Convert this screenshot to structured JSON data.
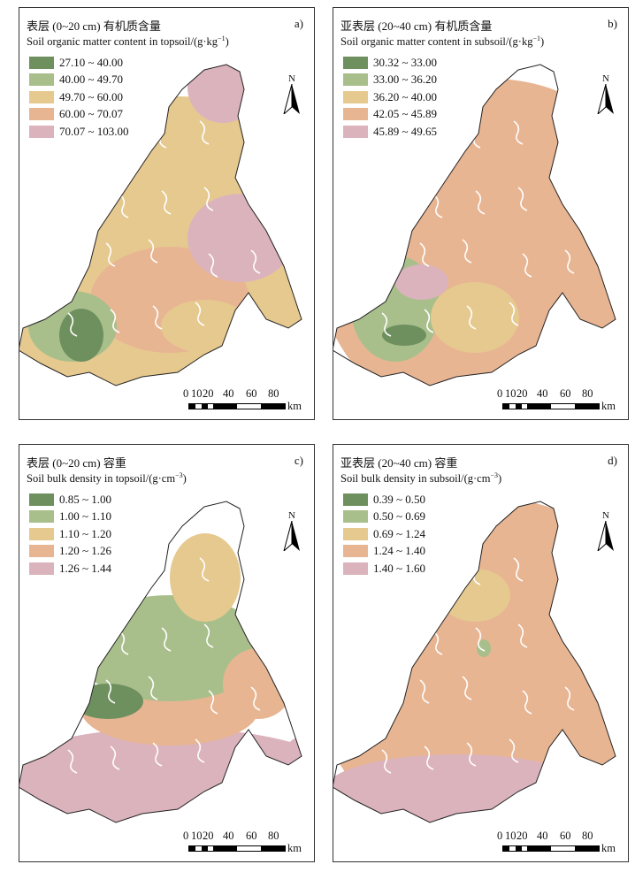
{
  "panels": [
    {
      "id": "a",
      "label": "a)",
      "title_cn": "表层 (0~20 cm) 有机质含量",
      "title_en": "Soil organic matter content in topsoil/(g·kg",
      "title_en_sup": "−1",
      "title_en_end": ")",
      "legend": [
        {
          "range": "27.10 ~ 40.00",
          "color": "#6e905e"
        },
        {
          "range": "40.00 ~ 49.70",
          "color": "#a9bf8b"
        },
        {
          "range": "49.70 ~ 60.00",
          "color": "#e6c98f"
        },
        {
          "range": "60.00 ~ 70.07",
          "color": "#e8b593"
        },
        {
          "range": "70.07 ~ 103.00",
          "color": "#dbb3bd"
        }
      ]
    },
    {
      "id": "b",
      "label": "b)",
      "title_cn": "亚表层 (20~40 cm) 有机质含量",
      "title_en": "Soil organic matter content in subsoil/(g·kg",
      "title_en_sup": "−1",
      "title_en_end": ")",
      "legend": [
        {
          "range": "30.32 ~ 33.00",
          "color": "#6e905e"
        },
        {
          "range": "33.00 ~ 36.20",
          "color": "#a9bf8b"
        },
        {
          "range": "36.20 ~ 40.00",
          "color": "#e6c98f"
        },
        {
          "range": "42.05 ~ 45.89",
          "color": "#e8b593"
        },
        {
          "range": "45.89 ~ 49.65",
          "color": "#dbb3bd"
        }
      ]
    },
    {
      "id": "c",
      "label": "c)",
      "title_cn": "表层 (0~20 cm) 容重",
      "title_en": "Soil bulk density in topsoil/(g·cm",
      "title_en_sup": "−3",
      "title_en_end": ")",
      "legend": [
        {
          "range": "0.85 ~ 1.00",
          "color": "#6e905e"
        },
        {
          "range": "1.00 ~ 1.10",
          "color": "#a9bf8b"
        },
        {
          "range": "1.10 ~ 1.20",
          "color": "#e6c98f"
        },
        {
          "range": "1.20 ~ 1.26",
          "color": "#e8b593"
        },
        {
          "range": "1.26 ~ 1.44",
          "color": "#dbb3bd"
        }
      ]
    },
    {
      "id": "d",
      "label": "d)",
      "title_cn": "亚表层 (20~40 cm) 容重",
      "title_en": "Soil bulk density in subsoil/(g·cm",
      "title_en_sup": "−3",
      "title_en_end": ")",
      "legend": [
        {
          "range": "0.39 ~ 0.50",
          "color": "#6e905e"
        },
        {
          "range": "0.50 ~ 0.69",
          "color": "#a9bf8b"
        },
        {
          "range": "0.69 ~ 1.24",
          "color": "#e6c98f"
        },
        {
          "range": "1.24 ~ 1.40",
          "color": "#e8b593"
        },
        {
          "range": "1.40 ~ 1.60",
          "color": "#dbb3bd"
        }
      ]
    }
  ],
  "north_label": "N",
  "scale": {
    "ticks": [
      "0",
      "10",
      "20",
      "40",
      "60",
      "80"
    ],
    "unit": "km"
  }
}
